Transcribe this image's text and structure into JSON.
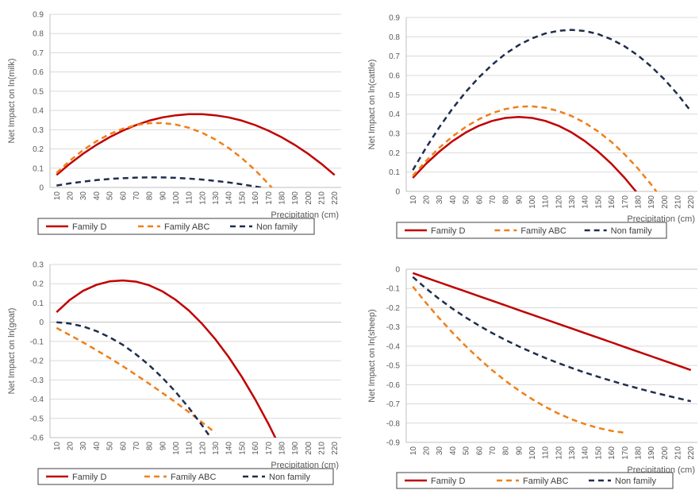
{
  "legend_items": [
    "Family D",
    "Family ABC",
    "Non family"
  ],
  "chart_data": [
    {
      "type": "line",
      "x": [
        10,
        20,
        30,
        40,
        50,
        60,
        70,
        80,
        90,
        100,
        110,
        120,
        130,
        140,
        150,
        160,
        170,
        180,
        190,
        200,
        210,
        220
      ],
      "xlabel": "Precipitation (cm)",
      "ylabel": "Net Impact on ln(milk)",
      "ylim": [
        0,
        0.9
      ],
      "yticks": [
        0,
        0.1,
        0.2,
        0.3,
        0.4,
        0.5,
        0.6,
        0.7,
        0.8,
        0.9
      ],
      "series": [
        {
          "name": "Family D",
          "color": "#c00000",
          "dash": "solid",
          "values": [
            0.065,
            0.123,
            0.175,
            0.221,
            0.261,
            0.295,
            0.324,
            0.347,
            0.364,
            0.375,
            0.381,
            0.381,
            0.375,
            0.364,
            0.347,
            0.324,
            0.295,
            0.261,
            0.221,
            0.175,
            0.123,
            0.065
          ]
        },
        {
          "name": "Family ABC",
          "color": "#f07f17",
          "dash": "dashed",
          "values": [
            0.075,
            0.139,
            0.194,
            0.24,
            0.277,
            0.305,
            0.324,
            0.334,
            0.335,
            0.327,
            0.31,
            0.284,
            0.249,
            0.205,
            0.152,
            0.09,
            0.019,
            -0.061,
            null,
            null,
            null,
            null
          ]
        },
        {
          "name": "Non family",
          "color": "#1f2d4d",
          "dash": "dashed",
          "values": [
            0.01,
            0.021,
            0.03,
            0.038,
            0.044,
            0.048,
            0.051,
            0.052,
            0.052,
            0.05,
            0.046,
            0.041,
            0.034,
            0.026,
            0.016,
            0.005,
            -0.008,
            null,
            null,
            null,
            null,
            null
          ]
        }
      ]
    },
    {
      "type": "line",
      "x": [
        10,
        20,
        30,
        40,
        50,
        60,
        70,
        80,
        90,
        100,
        110,
        120,
        130,
        140,
        150,
        160,
        170,
        180,
        190,
        200,
        210,
        220
      ],
      "xlabel": "Precipitation (cm)",
      "ylabel": "Net Impact on ln(cattle)",
      "ylim": [
        0,
        0.9
      ],
      "yticks": [
        0,
        0.1,
        0.2,
        0.3,
        0.4,
        0.5,
        0.6,
        0.7,
        0.8,
        0.9
      ],
      "series": [
        {
          "name": "Family D",
          "color": "#c00000",
          "dash": "solid",
          "values": [
            0.07,
            0.143,
            0.206,
            0.26,
            0.305,
            0.34,
            0.365,
            0.38,
            0.385,
            0.38,
            0.365,
            0.34,
            0.305,
            0.26,
            0.206,
            0.143,
            0.07,
            -0.012,
            null,
            null,
            null,
            null
          ]
        },
        {
          "name": "Family ABC",
          "color": "#f07f17",
          "dash": "dashed",
          "values": [
            0.08,
            0.158,
            0.226,
            0.285,
            0.334,
            0.374,
            0.405,
            0.426,
            0.438,
            0.44,
            0.433,
            0.416,
            0.39,
            0.355,
            0.31,
            0.256,
            0.192,
            0.119,
            0.036,
            -0.056,
            null,
            null
          ]
        },
        {
          "name": "Non family",
          "color": "#1f2d4d",
          "dash": "dashed",
          "values": [
            0.11,
            0.226,
            0.332,
            0.429,
            0.515,
            0.591,
            0.656,
            0.712,
            0.757,
            0.792,
            0.817,
            0.831,
            0.836,
            0.83,
            0.814,
            0.787,
            0.751,
            0.704,
            0.647,
            0.58,
            0.503,
            0.415
          ]
        }
      ]
    },
    {
      "type": "line",
      "x": [
        10,
        20,
        30,
        40,
        50,
        60,
        70,
        80,
        90,
        100,
        110,
        120,
        130,
        140,
        150,
        160,
        170,
        180,
        190,
        200,
        210,
        220
      ],
      "xlabel": "Precipitation (cm)",
      "ylabel": "Net Impact on ln(goat)",
      "ylim": [
        -0.6,
        0.3
      ],
      "yticks": [
        -0.6,
        -0.5,
        -0.4,
        -0.3,
        -0.2,
        -0.1,
        0,
        0.1,
        0.2,
        0.3
      ],
      "series": [
        {
          "name": "Family D",
          "color": "#c00000",
          "dash": "solid",
          "values": [
            0.052,
            0.116,
            0.163,
            0.194,
            0.212,
            0.217,
            0.211,
            0.192,
            0.16,
            0.116,
            0.06,
            -0.009,
            -0.089,
            -0.181,
            -0.285,
            -0.401,
            -0.528,
            -0.666,
            null,
            null,
            null,
            null
          ]
        },
        {
          "name": "Family ABC",
          "color": "#f07f17",
          "dash": "dashed",
          "values": [
            -0.03,
            -0.067,
            -0.105,
            -0.145,
            -0.186,
            -0.229,
            -0.274,
            -0.32,
            -0.368,
            -0.417,
            -0.468,
            -0.521,
            -0.575,
            null,
            null,
            null,
            null,
            null,
            null,
            null,
            null,
            null
          ]
        },
        {
          "name": "Non family",
          "color": "#1f2d4d",
          "dash": "dashed",
          "values": [
            0,
            -0.007,
            -0.022,
            -0.046,
            -0.078,
            -0.118,
            -0.167,
            -0.224,
            -0.289,
            -0.363,
            -0.446,
            -0.537,
            -0.636,
            null,
            null,
            null,
            null,
            null,
            null,
            null,
            null,
            null
          ]
        }
      ]
    },
    {
      "type": "line",
      "x": [
        10,
        20,
        30,
        40,
        50,
        60,
        70,
        80,
        90,
        100,
        110,
        120,
        130,
        140,
        150,
        160,
        170,
        180,
        190,
        200,
        210,
        220
      ],
      "xlabel": "Precipitation (cm)",
      "ylabel": "Net Impact on ln(sheep)",
      "ylim": [
        -0.9,
        0
      ],
      "yticks": [
        -0.9,
        -0.8,
        -0.7,
        -0.6,
        -0.5,
        -0.4,
        -0.3,
        -0.2,
        -0.1,
        0
      ],
      "series": [
        {
          "name": "Family D",
          "color": "#c00000",
          "dash": "solid",
          "values": [
            -0.02,
            -0.044,
            -0.068,
            -0.092,
            -0.116,
            -0.14,
            -0.164,
            -0.188,
            -0.212,
            -0.236,
            -0.26,
            -0.284,
            -0.308,
            -0.332,
            -0.356,
            -0.38,
            -0.404,
            -0.428,
            -0.452,
            -0.476,
            -0.5,
            -0.524
          ]
        },
        {
          "name": "Family ABC",
          "color": "#f07f17",
          "dash": "dashed",
          "values": [
            -0.09,
            -0.175,
            -0.255,
            -0.33,
            -0.4,
            -0.465,
            -0.525,
            -0.58,
            -0.63,
            -0.675,
            -0.715,
            -0.75,
            -0.78,
            -0.805,
            -0.825,
            -0.84,
            -0.85,
            null,
            null,
            null,
            null,
            null
          ]
        },
        {
          "name": "Non family",
          "color": "#1f2d4d",
          "dash": "dashed",
          "values": [
            -0.04,
            -0.1,
            -0.155,
            -0.205,
            -0.251,
            -0.293,
            -0.332,
            -0.368,
            -0.401,
            -0.432,
            -0.461,
            -0.488,
            -0.513,
            -0.537,
            -0.559,
            -0.58,
            -0.6,
            -0.619,
            -0.637,
            -0.654,
            -0.67,
            -0.686
          ]
        }
      ]
    }
  ]
}
